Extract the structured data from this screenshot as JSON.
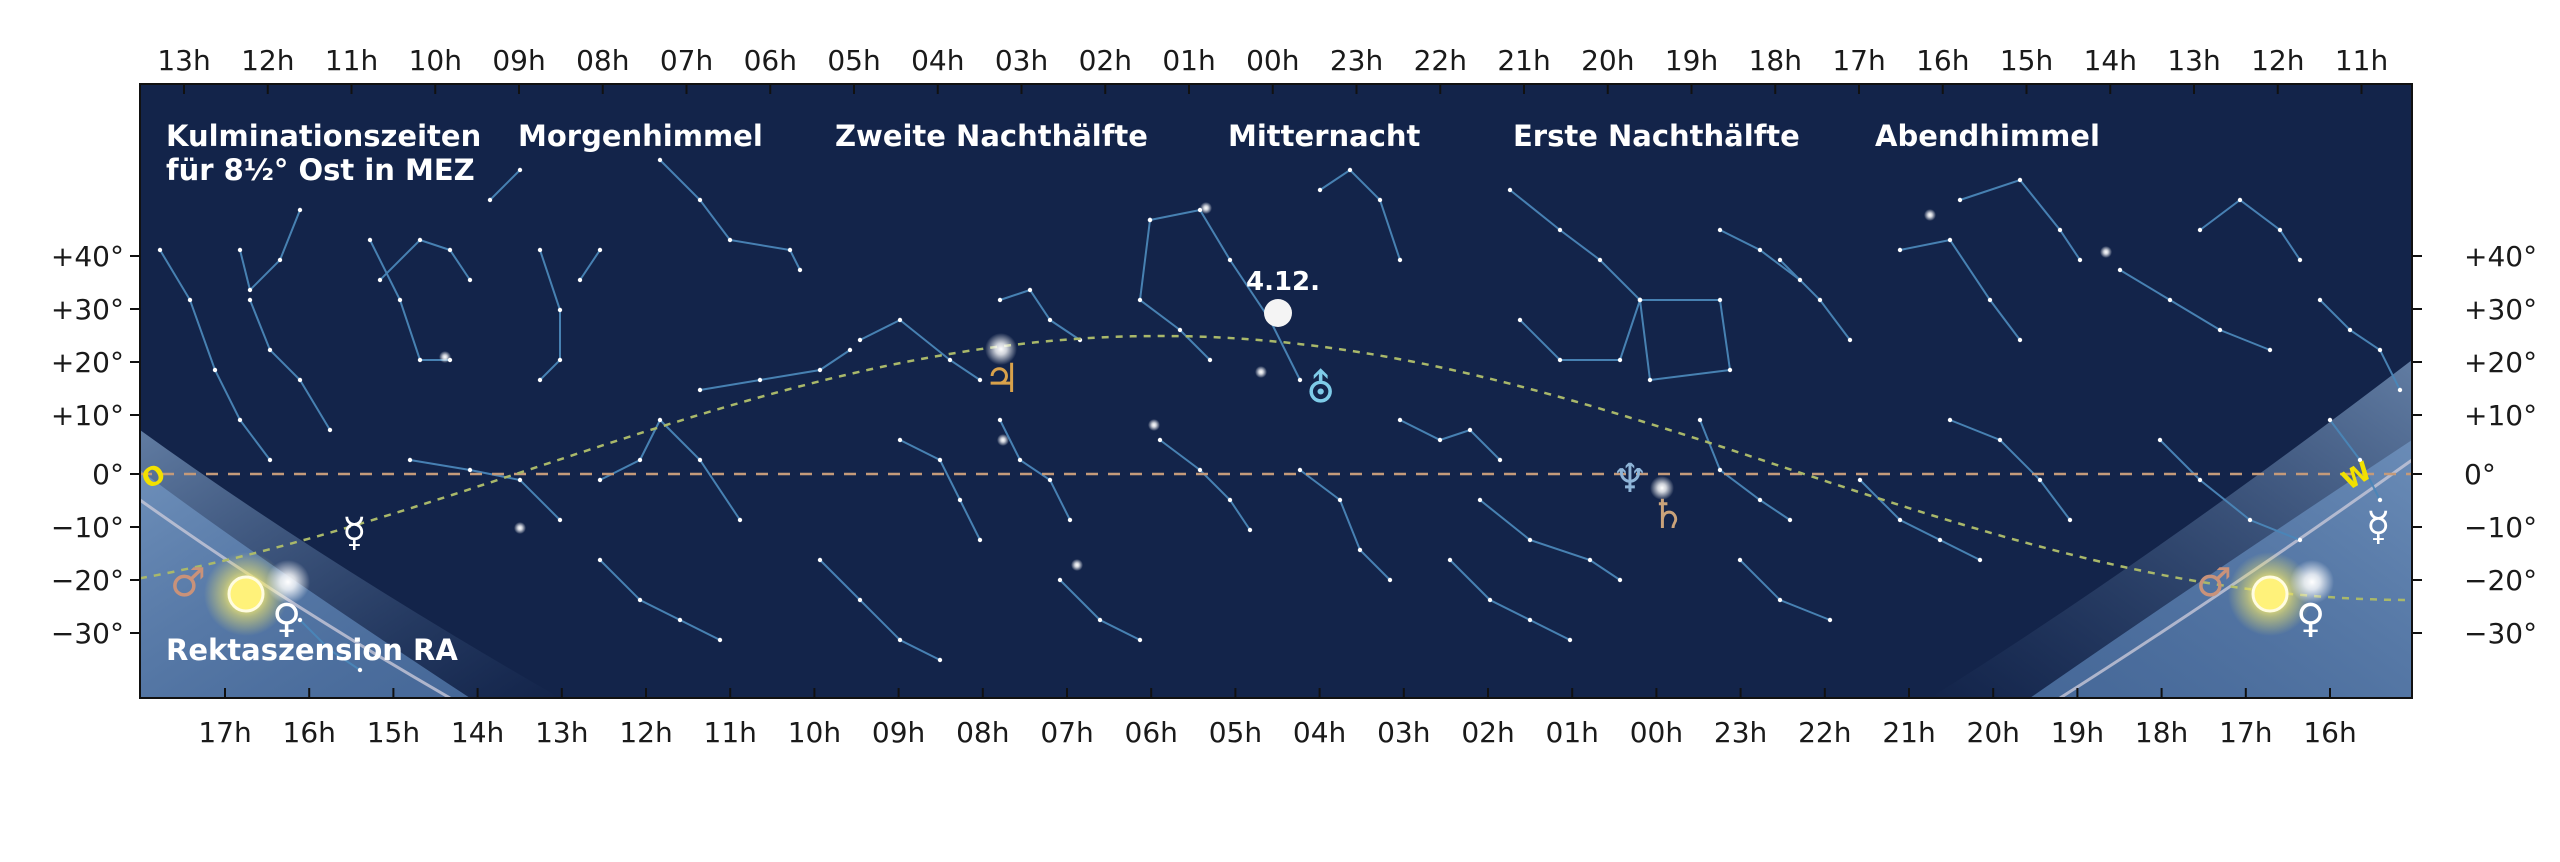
{
  "top_axis_hours": [
    "13h",
    "12h",
    "11h",
    "10h",
    "09h",
    "08h",
    "07h",
    "06h",
    "05h",
    "04h",
    "03h",
    "02h",
    "01h",
    "00h",
    "23h",
    "22h",
    "21h",
    "20h",
    "19h",
    "18h",
    "17h",
    "16h",
    "15h",
    "14h",
    "13h",
    "12h",
    "11h"
  ],
  "bottom_axis_hours": [
    "17h",
    "16h",
    "15h",
    "14h",
    "13h",
    "12h",
    "11h",
    "10h",
    "09h",
    "08h",
    "07h",
    "06h",
    "05h",
    "04h",
    "03h",
    "02h",
    "01h",
    "00h",
    "23h",
    "22h",
    "21h",
    "20h",
    "19h",
    "18h",
    "17h",
    "16h"
  ],
  "declination_labels_left": [
    "+40°",
    "+30°",
    "+20°",
    "+10°",
    "0°",
    "−10°",
    "−20°",
    "−30°"
  ],
  "declination_labels_right": [
    "+40°",
    "+30°",
    "+20°",
    "+10°",
    "0°",
    "−10°",
    "−20°",
    "−30°"
  ],
  "header": {
    "culmination_line1": "Kulminationszeiten",
    "culmination_line2": "für 8½° Ost in MEZ",
    "sections": [
      "Morgenhimmel",
      "Zweite Nachthälfte",
      "Mitternacht",
      "Erste Nachthälfte",
      "Abendhimmel"
    ]
  },
  "footer_label": "Rektaszension RA",
  "moon_label": "4.12.",
  "directions": {
    "east": "O",
    "west": "W"
  },
  "planets": {
    "mars_left": "♂",
    "venus_left": "♀",
    "mercury_left": "☿",
    "jupiter": "♃",
    "uranus": "⛢",
    "neptune": "♆",
    "saturn": "♄",
    "mars_right": "♂",
    "venus_right": "♀",
    "mercury_right": "☿"
  },
  "colors": {
    "sky": "#13244a",
    "constellation_line": "#4a86b8",
    "ecliptic": "#a9b86a",
    "equator": "#c49a7a",
    "sun": "#fff27a",
    "twilight": "#5b7fae",
    "direction_text": "#f2e100",
    "jupiter": "#d9a24b",
    "mars": "#c9927a",
    "saturn": "#c9a27a",
    "uranus": "#7ecbe8",
    "neptune": "#8fb5d8"
  },
  "icons": {
    "moon": "full-moon-icon",
    "sun": "sun-icon"
  }
}
